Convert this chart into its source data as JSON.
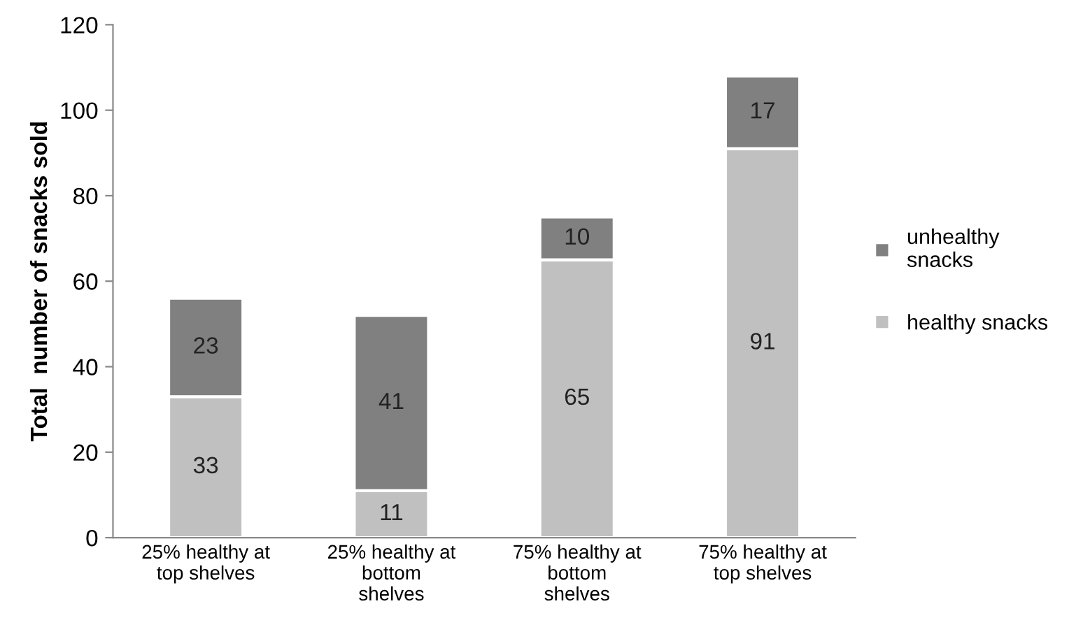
{
  "chart_data": {
    "type": "bar",
    "stacked": true,
    "ylabel": "Total  number of snacks sold",
    "categories": [
      "25% healthy at\ntop shelves",
      "25% healthy at\nbottom\nshelves",
      "75% healthy at\nbottom\nshelves",
      "75% healthy at\ntop shelves"
    ],
    "series": [
      {
        "name": "healthy snacks",
        "color": "#c0c0c0",
        "values": [
          33,
          11,
          65,
          91
        ]
      },
      {
        "name": "unhealthy\nsnacks",
        "color": "#808080",
        "values": [
          23,
          41,
          10,
          17
        ]
      }
    ],
    "ylim": [
      0,
      120
    ],
    "yticks": [
      0,
      20,
      40,
      60,
      80,
      100,
      120
    ],
    "data_labels": true,
    "grid": false,
    "legend": "right"
  }
}
